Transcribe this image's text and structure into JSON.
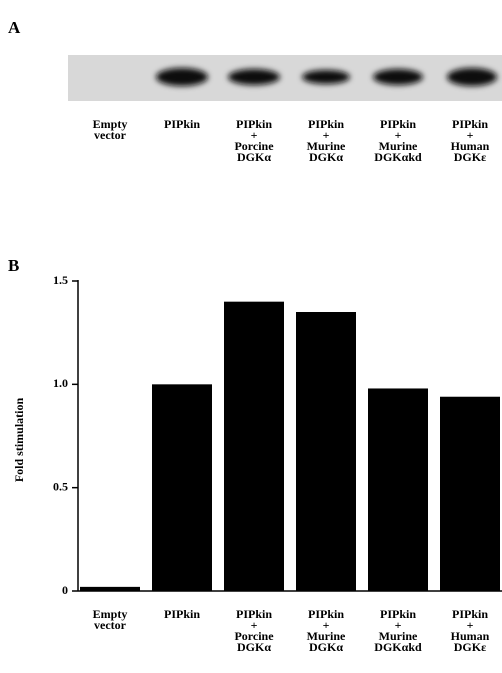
{
  "panel_a": {
    "label": "A",
    "lanes": [
      "Empty\nvector",
      "PIPkin",
      "PIPkin\n+\nPorcine\nDGKα",
      "PIPkin\n+\nMurine\nDGKα",
      "PIPkin\n+\nMurine\nDGKαkd",
      "PIPkin\n+\nHuman\nDGKε"
    ]
  },
  "chart_data": {
    "type": "bar",
    "panel_label": "B",
    "ylabel": "Fold stimulation",
    "categories": [
      "Empty\nvector",
      "PIPkin",
      "PIPkin\n+\nPorcine\nDGKα",
      "PIPkin\n+\nMurine\nDGKα",
      "PIPkin\n+\nMurine\nDGKαkd",
      "PIPkin\n+\nHuman\nDGKε"
    ],
    "values": [
      0.02,
      1.0,
      1.4,
      1.35,
      0.98,
      0.94
    ],
    "color": "#000000",
    "ylim": [
      0,
      1.5
    ],
    "yticks": [
      0,
      0.5,
      {
        "value": 1,
        "label": "1.0"
      },
      1.5
    ]
  }
}
